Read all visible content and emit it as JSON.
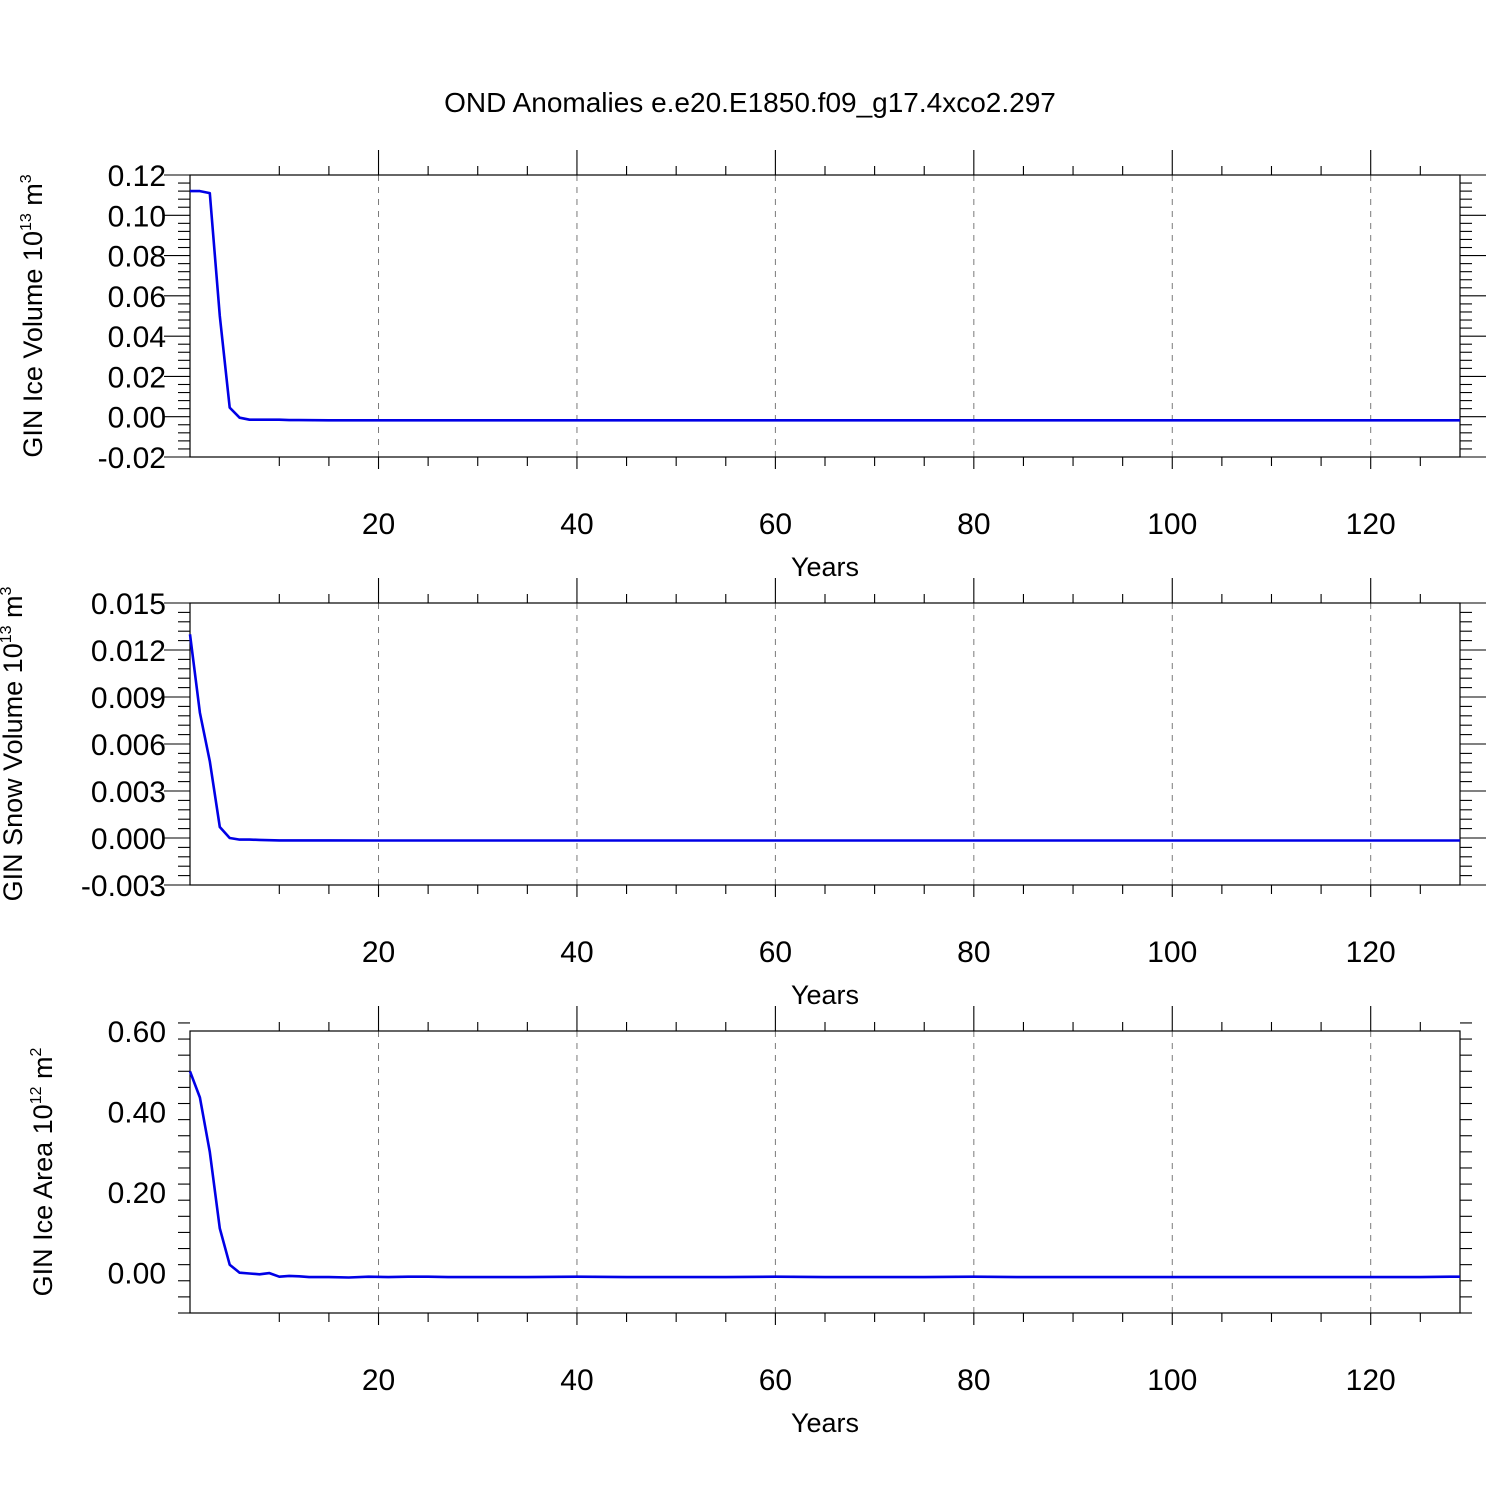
{
  "figure": {
    "title": "OND Anomalies e.e20.E1850.f09_g17.4xco2.297"
  },
  "chart_data": [
    {
      "type": "line",
      "xlabel": "Years",
      "ylabel": {
        "main": "GIN Ice Volume 10",
        "sup": "13",
        "unit": " m",
        "unit_sup": "3"
      },
      "xlim": [
        1,
        129
      ],
      "ylim": [
        -0.02,
        0.12
      ],
      "xticks": [
        20,
        40,
        60,
        80,
        100,
        120
      ],
      "xtick_labels": [
        "20",
        "40",
        "60",
        "80",
        "100",
        "120"
      ],
      "yticks": [
        -0.02,
        0.0,
        0.02,
        0.04,
        0.06,
        0.08,
        0.1,
        0.12
      ],
      "ytick_labels": [
        "-0.02",
        "0.00",
        "0.02",
        "0.04",
        "0.06",
        "0.08",
        "0.10",
        "0.12"
      ],
      "grid_x": true,
      "series": [
        {
          "color": "#0000e6",
          "x": [
            1,
            2,
            3,
            4,
            5,
            6,
            7,
            8,
            9,
            10,
            11,
            12,
            15,
            20,
            30,
            40,
            50,
            60,
            70,
            80,
            90,
            100,
            110,
            120,
            129
          ],
          "values": [
            0.112,
            0.112,
            0.111,
            0.05,
            0.0045,
            -0.0005,
            -0.0015,
            -0.0015,
            -0.0015,
            -0.0015,
            -0.0017,
            -0.0017,
            -0.0018,
            -0.0018,
            -0.0018,
            -0.0018,
            -0.0018,
            -0.0018,
            -0.0018,
            -0.0018,
            -0.0018,
            -0.0018,
            -0.0018,
            -0.0018,
            -0.0018
          ]
        }
      ]
    },
    {
      "type": "line",
      "xlabel": "Years",
      "ylabel": {
        "main": "GIN Snow Volume 10",
        "sup": "13",
        "unit": " m",
        "unit_sup": "3"
      },
      "xlim": [
        1,
        129
      ],
      "ylim": [
        -0.003,
        0.015
      ],
      "xticks": [
        20,
        40,
        60,
        80,
        100,
        120
      ],
      "xtick_labels": [
        "20",
        "40",
        "60",
        "80",
        "100",
        "120"
      ],
      "yticks": [
        -0.003,
        0.0,
        0.003,
        0.006,
        0.009,
        0.012,
        0.015
      ],
      "ytick_labels": [
        "-0.003",
        "0.000",
        "0.003",
        "0.006",
        "0.009",
        "0.012",
        "0.015"
      ],
      "grid_x": true,
      "series": [
        {
          "color": "#0000e6",
          "x": [
            1,
            2,
            3,
            4,
            5,
            6,
            7,
            8,
            10,
            15,
            20,
            30,
            40,
            50,
            60,
            70,
            80,
            90,
            100,
            110,
            120,
            129
          ],
          "values": [
            0.013,
            0.008,
            0.0049,
            0.0007,
            0.0,
            -0.0001,
            -0.0001,
            -0.00012,
            -0.00015,
            -0.00015,
            -0.00016,
            -0.00016,
            -0.00016,
            -0.00016,
            -0.00016,
            -0.00016,
            -0.00016,
            -0.00016,
            -0.00016,
            -0.00016,
            -0.00016,
            -0.00016
          ]
        }
      ]
    },
    {
      "type": "line",
      "xlabel": "Years",
      "ylabel": {
        "main": "GIN Ice Area 10",
        "sup": "12",
        "unit": " m",
        "unit_sup": "2"
      },
      "xlim": [
        1,
        129
      ],
      "ylim": [
        -0.1,
        0.6
      ],
      "xticks": [
        20,
        40,
        60,
        80,
        100,
        120
      ],
      "xtick_labels": [
        "20",
        "40",
        "60",
        "80",
        "100",
        "120"
      ],
      "yticks": [
        0.0,
        0.2,
        0.4,
        0.6
      ],
      "ytick_labels": [
        "0.00",
        "0.20",
        "0.40",
        "0.60"
      ],
      "grid_x": true,
      "series": [
        {
          "color": "#0000e6",
          "x": [
            1,
            2,
            3,
            4,
            5,
            6,
            7,
            8,
            9,
            10,
            11,
            12,
            13,
            15,
            17,
            19,
            21,
            23,
            25,
            27,
            30,
            35,
            40,
            45,
            50,
            55,
            60,
            65,
            70,
            75,
            80,
            85,
            90,
            95,
            100,
            105,
            110,
            115,
            120,
            125,
            128,
            129
          ],
          "values": [
            0.5,
            0.435,
            0.3,
            0.11,
            0.02,
            0.0,
            -0.002,
            -0.004,
            -0.001,
            -0.01,
            -0.008,
            -0.009,
            -0.011,
            -0.011,
            -0.012,
            -0.01,
            -0.011,
            -0.01,
            -0.01,
            -0.011,
            -0.011,
            -0.011,
            -0.01,
            -0.011,
            -0.011,
            -0.011,
            -0.01,
            -0.011,
            -0.011,
            -0.011,
            -0.01,
            -0.011,
            -0.011,
            -0.011,
            -0.011,
            -0.011,
            -0.011,
            -0.011,
            -0.011,
            -0.011,
            -0.01,
            -0.01
          ]
        }
      ]
    }
  ]
}
